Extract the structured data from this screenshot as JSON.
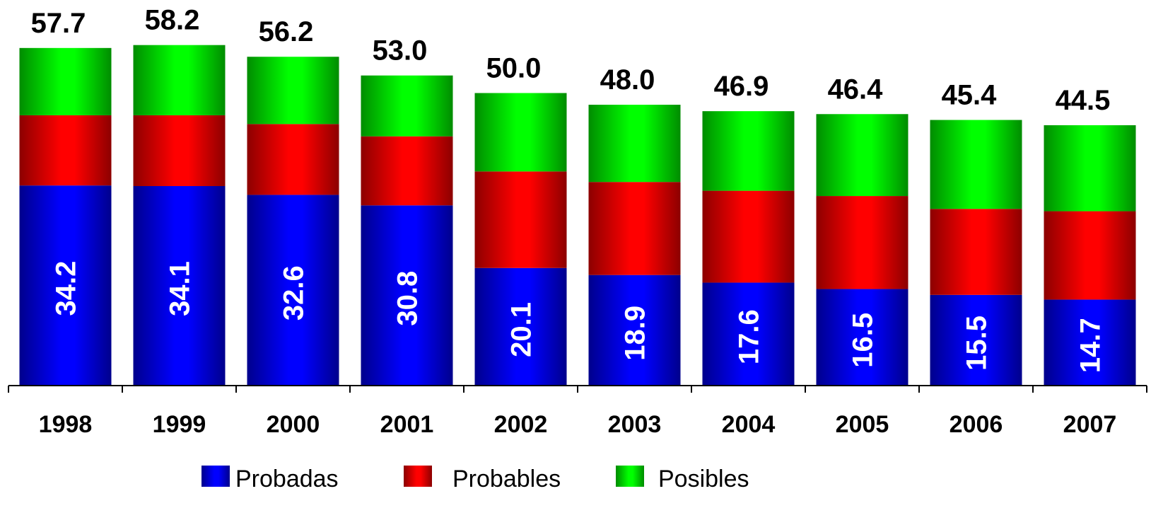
{
  "chart_data": {
    "type": "bar",
    "stacked": true,
    "categories": [
      "1998",
      "1999",
      "2000",
      "2001",
      "2002",
      "2003",
      "2004",
      "2005",
      "2006",
      "2007"
    ],
    "series": [
      {
        "name": "Probadas",
        "values": [
          34.2,
          34.1,
          32.6,
          30.8,
          20.1,
          18.9,
          17.6,
          16.5,
          15.5,
          14.7
        ],
        "color": "#0000ff"
      },
      {
        "name": "Probables",
        "values": [
          12.0,
          12.1,
          12.1,
          11.8,
          16.5,
          15.9,
          15.7,
          15.9,
          14.7,
          15.1
        ],
        "color": "#ff0000"
      },
      {
        "name": "Posibles",
        "values": [
          11.5,
          12.0,
          11.5,
          10.4,
          13.4,
          13.2,
          13.6,
          14.0,
          15.2,
          14.7
        ],
        "color": "#00ff00"
      }
    ],
    "totals": [
      "57.7",
      "58.2",
      "56.2",
      "53.0",
      "50.0",
      "48.0",
      "46.9",
      "46.4",
      "45.4",
      "44.5"
    ],
    "probadas_labels": [
      "34.2",
      "34.1",
      "32.6",
      "30.8",
      "20.1",
      "18.9",
      "17.6",
      "16.5",
      "15.5",
      "14.7"
    ],
    "ylim": [
      0,
      58.2
    ],
    "grid": false,
    "legend_position": "bottom"
  }
}
